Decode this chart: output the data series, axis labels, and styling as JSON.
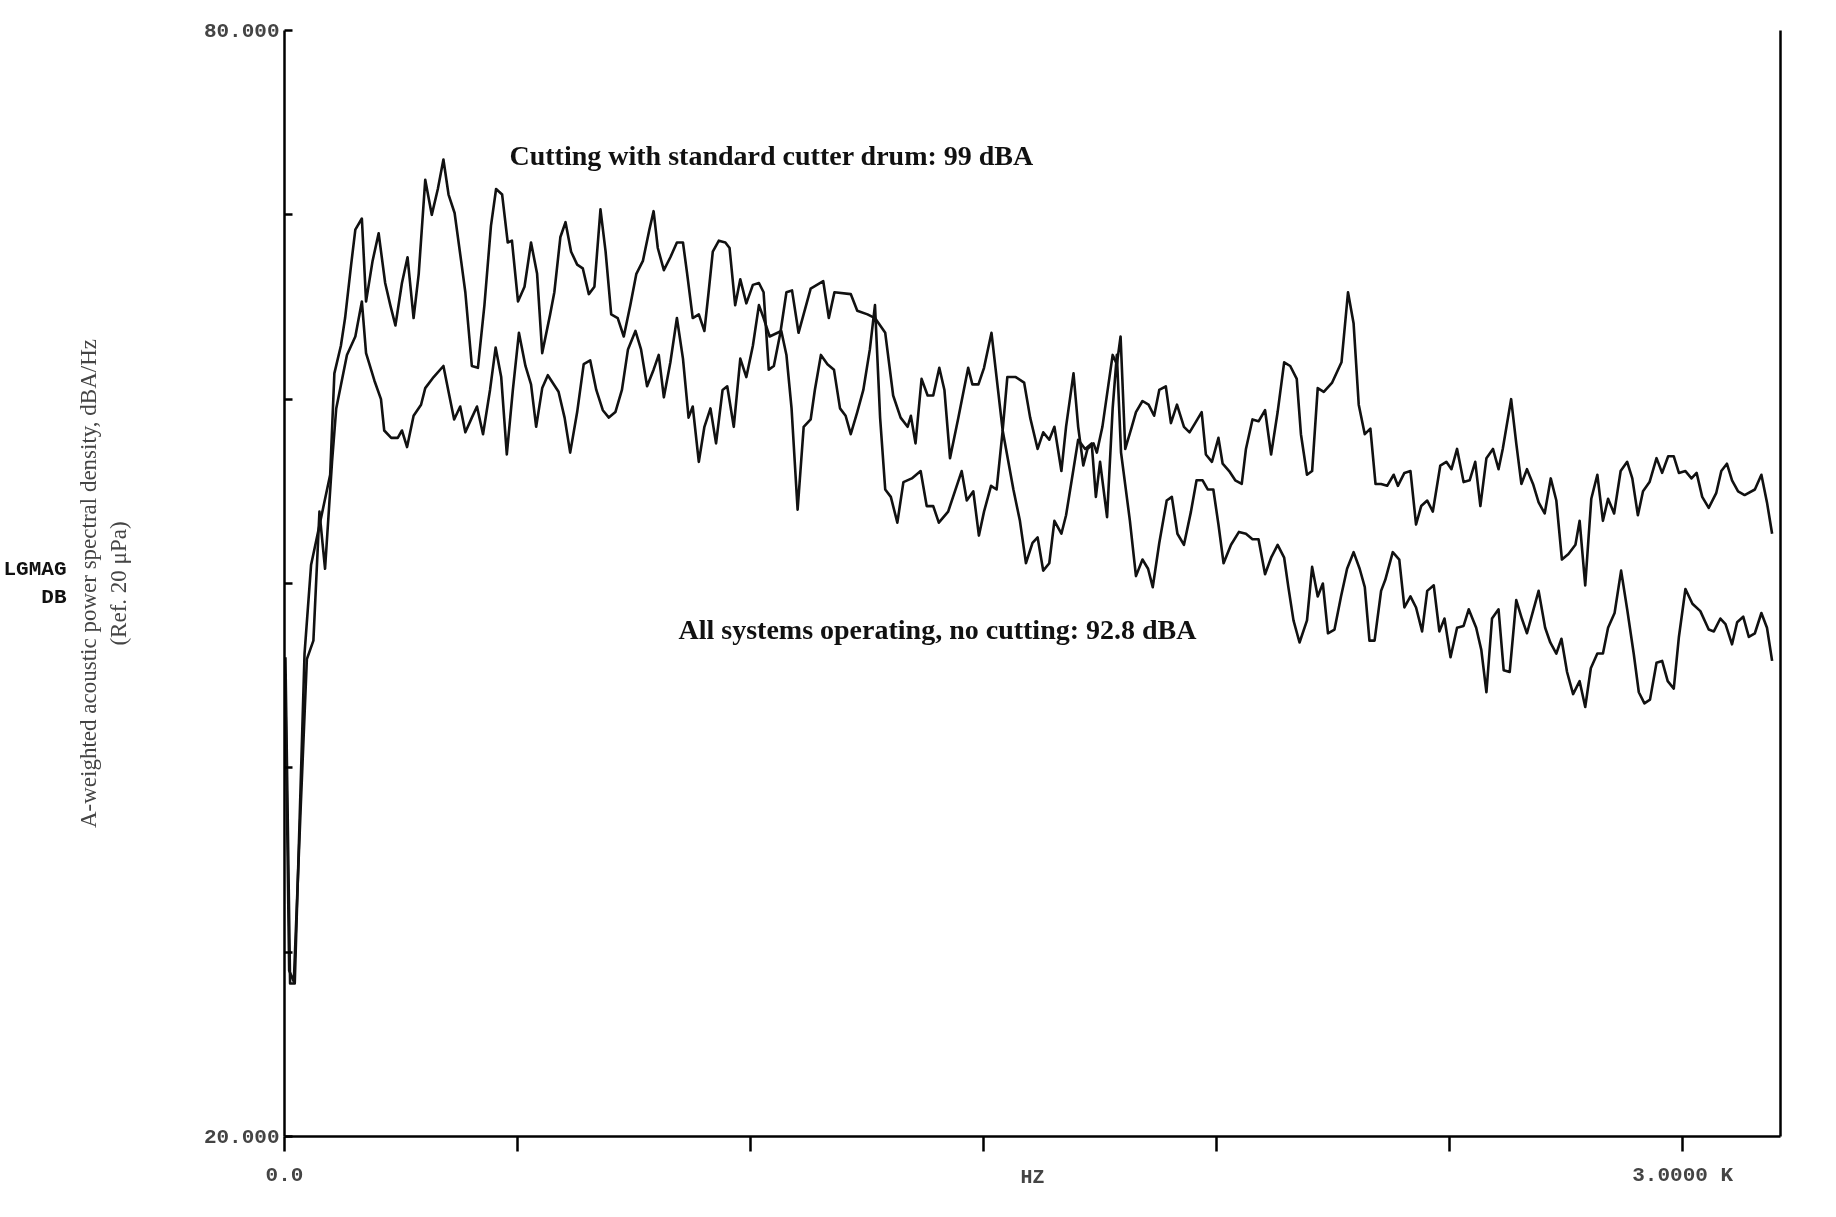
{
  "chart_data": {
    "type": "line",
    "xlabel": "HZ",
    "ylabel": "A-weighted acoustic power spectral density, dBA/Hz\n(Ref. 20 μPa)",
    "xlim": [
      0,
      3210
    ],
    "ylim": [
      20,
      80
    ],
    "xticks": [
      {
        "value": 0,
        "label": "0.0"
      },
      {
        "value": 500,
        "label": null
      },
      {
        "value": 1000,
        "label": null
      },
      {
        "value": 1500,
        "label": null
      },
      {
        "value": 2000,
        "label": null
      },
      {
        "value": 2500,
        "label": null
      },
      {
        "value": 3000,
        "label": "3.0000 K"
      }
    ],
    "yticks": [
      {
        "value": 20,
        "label": "20.000"
      },
      {
        "value": 30,
        "label": null
      },
      {
        "value": 40,
        "label": null
      },
      {
        "value": 50,
        "label": null
      },
      {
        "value": 60,
        "label": null
      },
      {
        "value": 70,
        "label": null
      },
      {
        "value": 80,
        "label": "80.000"
      }
    ],
    "grid": false,
    "marker": "none",
    "line_style": "solid",
    "annotations": [
      "Cutting with standard cutter drum: 99 dBA",
      "All systems operating, no cutting: 92.8 dBA",
      "LGMAG\nDB"
    ],
    "series": [
      {
        "color": "#111111",
        "x": [
          2,
          12,
          22,
          43,
          57,
          98,
          107,
          121,
          130,
          143,
          152,
          166,
          175,
          189,
          202,
          216,
          227,
          238,
          252,
          264,
          277,
          288,
          302,
          316,
          329,
          341,
          352,
          365,
          379,
          388,
          402,
          415,
          429,
          443,
          454,
          467,
          479,
          488,
          501,
          515,
          529,
          542,
          553,
          570,
          579,
          592,
          603,
          615,
          628,
          640,
          653,
          665,
          678,
          689,
          701,
          715,
          728,
          742,
          755,
          769,
          783,
          792,
          801,
          814,
          828,
          842,
          855,
          864,
          876,
          889,
          901,
          910,
          919,
          932,
          946,
          955,
          967,
          978,
          991,
          1005,
          1018,
          1028,
          1039,
          1050,
          1064,
          1077,
          1089,
          1103,
          1129,
          1156,
          1168,
          1180,
          1215,
          1229,
          1251,
          1267,
          1289,
          1306,
          1322,
          1337,
          1344,
          1354,
          1367,
          1380,
          1392,
          1405,
          1416,
          1428,
          1446,
          1467,
          1476,
          1489,
          1501,
          1517,
          1531,
          1541,
          1551,
          1569,
          1587,
          1600,
          1616,
          1628,
          1641,
          1652,
          1667,
          1677,
          1693,
          1703,
          1714,
          1723,
          1736,
          1743,
          1755,
          1777,
          1786,
          1794,
          1804,
          1818,
          1827,
          1841,
          1854,
          1866,
          1877,
          1891,
          1902,
          1915,
          1930,
          1942,
          1954,
          1968,
          1977,
          1990,
          2004,
          2013,
          2027,
          2040,
          2054,
          2063,
          2077,
          2090,
          2104,
          2117,
          2131,
          2145,
          2158,
          2172,
          2181,
          2194,
          2205,
          2217,
          2230,
          2248,
          2268,
          2282,
          2294,
          2305,
          2318,
          2330,
          2341,
          2353,
          2366,
          2380,
          2389,
          2403,
          2416,
          2428,
          2439,
          2452,
          2464,
          2480,
          2493,
          2504,
          2516,
          2530,
          2543,
          2555,
          2566,
          2579,
          2593,
          2605,
          2614,
          2632,
          2643,
          2654,
          2666,
          2679,
          2691,
          2704,
          2717,
          2729,
          2741,
          2755,
          2770,
          2779,
          2791,
          2804,
          2817,
          2829,
          2840,
          2853,
          2867,
          2881,
          2892,
          2904,
          2915,
          2929,
          2944,
          2956,
          2969,
          2981,
          2992,
          3006,
          3019,
          3030,
          3042,
          3056,
          3072,
          3083,
          3095,
          3106,
          3119,
          3133,
          3155,
          3169,
          3181,
          3192
        ],
        "values": [
          46.0,
          28.3,
          28.3,
          46.2,
          51.0,
          55.9,
          61.4,
          62.9,
          64.4,
          67.3,
          69.2,
          69.8,
          65.3,
          67.5,
          69.0,
          66.3,
          65.1,
          64.0,
          66.3,
          67.7,
          64.4,
          66.8,
          71.9,
          70.0,
          71.4,
          73.0,
          71.1,
          70.1,
          67.5,
          65.8,
          61.8,
          61.7,
          65.1,
          69.4,
          71.4,
          71.1,
          68.5,
          68.6,
          65.3,
          66.1,
          68.5,
          66.8,
          62.5,
          64.6,
          65.8,
          68.8,
          69.6,
          68.0,
          67.3,
          67.1,
          65.7,
          66.1,
          70.3,
          68.0,
          64.6,
          64.4,
          63.4,
          65.1,
          66.8,
          67.5,
          69.2,
          70.2,
          68.2,
          67.0,
          67.7,
          68.5,
          68.5,
          66.8,
          64.4,
          64.6,
          63.7,
          65.8,
          68.0,
          68.6,
          68.5,
          68.2,
          65.1,
          66.5,
          65.2,
          66.2,
          66.3,
          65.8,
          61.6,
          61.8,
          63.6,
          65.8,
          65.9,
          63.6,
          66.0,
          66.4,
          64.4,
          65.8,
          65.7,
          64.8,
          64.6,
          64.4,
          63.6,
          60.2,
          59.0,
          58.5,
          59.1,
          57.6,
          61.1,
          60.2,
          60.2,
          61.7,
          60.5,
          56.8,
          59.0,
          61.7,
          60.8,
          60.8,
          61.7,
          63.6,
          60.5,
          58.3,
          61.2,
          61.2,
          60.9,
          59.0,
          57.3,
          58.2,
          57.8,
          58.5,
          56.1,
          58.5,
          61.4,
          58.5,
          56.4,
          57.3,
          57.6,
          57.1,
          58.5,
          62.4,
          61.9,
          63.4,
          57.3,
          58.5,
          59.3,
          59.9,
          59.7,
          59.1,
          60.5,
          60.7,
          58.7,
          59.7,
          58.5,
          58.2,
          58.7,
          59.3,
          57.0,
          56.6,
          57.9,
          56.5,
          56.1,
          55.6,
          55.4,
          57.3,
          58.9,
          58.8,
          59.4,
          57.0,
          59.3,
          62.0,
          61.8,
          61.1,
          58.1,
          55.9,
          56.1,
          60.6,
          60.4,
          60.9,
          62.0,
          65.8,
          64.1,
          59.7,
          58.1,
          58.4,
          55.4,
          55.4,
          55.3,
          55.9,
          55.3,
          56.0,
          56.1,
          53.2,
          54.2,
          54.5,
          53.9,
          56.4,
          56.6,
          56.2,
          57.3,
          55.5,
          55.6,
          56.6,
          54.2,
          56.8,
          57.3,
          56.2,
          57.3,
          60.0,
          57.6,
          55.4,
          56.2,
          55.4,
          54.4,
          53.8,
          55.7,
          54.5,
          51.3,
          51.6,
          52.1,
          53.4,
          49.9,
          54.6,
          55.9,
          53.4,
          54.6,
          53.8,
          56.1,
          56.6,
          55.7,
          53.7,
          55.0,
          55.5,
          56.8,
          56.0,
          56.9,
          56.9,
          56.0,
          56.1,
          55.7,
          56.0,
          54.7,
          54.1,
          54.9,
          56.1,
          56.5,
          55.6,
          55.0,
          54.8,
          55.1,
          55.9,
          54.4,
          52.7
        ]
      },
      {
        "color": "#111111",
        "x": [
          2,
          10,
          20,
          35,
          48,
          62,
          75,
          87,
          102,
          111,
          134,
          152,
          166,
          175,
          193,
          207,
          214,
          229,
          243,
          252,
          263,
          277,
          293,
          302,
          320,
          341,
          352,
          364,
          377,
          388,
          402,
          413,
          426,
          441,
          453,
          465,
          477,
          490,
          503,
          517,
          529,
          540,
          553,
          565,
          588,
          601,
          613,
          628,
          642,
          656,
          669,
          683,
          696,
          710,
          724,
          737,
          753,
          765,
          778,
          792,
          803,
          814,
          828,
          842,
          855,
          867,
          876,
          889,
          901,
          914,
          926,
          940,
          950,
          964,
          978,
          991,
          1005,
          1018,
          1028,
          1041,
          1066,
          1077,
          1088,
          1101,
          1114,
          1129,
          1138,
          1151,
          1165,
          1179,
          1192,
          1204,
          1215,
          1229,
          1242,
          1256,
          1267,
          1278,
          1289,
          1301,
          1315,
          1328,
          1346,
          1365,
          1378,
          1392,
          1404,
          1424,
          1453,
          1464,
          1478,
          1490,
          1501,
          1516,
          1528,
          1541,
          1564,
          1578,
          1591,
          1605,
          1616,
          1628,
          1641,
          1652,
          1667,
          1677,
          1691,
          1703,
          1718,
          1732,
          1741,
          1750,
          1765,
          1777,
          1786,
          1795,
          1814,
          1827,
          1841,
          1853,
          1863,
          1877,
          1893,
          1904,
          1916,
          1930,
          1945,
          1957,
          1970,
          1981,
          1993,
          2004,
          2015,
          2031,
          2048,
          2063,
          2077,
          2090,
          2104,
          2117,
          2131,
          2145,
          2154,
          2165,
          2178,
          2194,
          2205,
          2217,
          2228,
          2239,
          2253,
          2267,
          2280,
          2294,
          2307,
          2318,
          2328,
          2339,
          2353,
          2362,
          2378,
          2392,
          2403,
          2416,
          2428,
          2441,
          2452,
          2466,
          2478,
          2489,
          2502,
          2516,
          2530,
          2541,
          2557,
          2568,
          2579,
          2591,
          2605,
          2616,
          2629,
          2643,
          2655,
          2666,
          2679,
          2691,
          2705,
          2716,
          2729,
          2740,
          2752,
          2765,
          2779,
          2791,
          2803,
          2817,
          2829,
          2840,
          2854,
          2868,
          2881,
          2895,
          2906,
          2918,
          2930,
          2944,
          2956,
          2968,
          2981,
          2992,
          3006,
          3021,
          3038,
          3056,
          3067,
          3081,
          3092,
          3106,
          3117,
          3130,
          3142,
          3155,
          3169,
          3181,
          3192
        ],
        "values": [
          44.0,
          29.0,
          28.4,
          38.0,
          45.9,
          46.9,
          53.9,
          50.8,
          56.6,
          59.5,
          62.4,
          63.4,
          65.3,
          62.5,
          61.0,
          60.0,
          58.3,
          57.9,
          57.9,
          58.3,
          57.4,
          59.1,
          59.7,
          60.6,
          61.2,
          61.8,
          60.4,
          58.9,
          59.6,
          58.2,
          59.0,
          59.6,
          58.1,
          60.5,
          62.8,
          61.2,
          57.0,
          60.5,
          63.6,
          61.8,
          60.8,
          58.5,
          60.6,
          61.3,
          60.4,
          59.0,
          57.1,
          59.3,
          61.9,
          62.1,
          60.5,
          59.4,
          59.0,
          59.3,
          60.5,
          62.7,
          63.7,
          62.7,
          60.7,
          61.6,
          62.4,
          60.1,
          62.0,
          64.4,
          62.2,
          59.0,
          59.6,
          56.6,
          58.5,
          59.5,
          57.6,
          60.5,
          60.7,
          58.5,
          62.2,
          61.2,
          62.9,
          65.1,
          64.4,
          63.4,
          63.7,
          62.4,
          59.5,
          54.0,
          58.5,
          58.9,
          60.5,
          62.4,
          61.9,
          61.6,
          59.5,
          59.1,
          58.1,
          59.3,
          60.5,
          62.7,
          65.1,
          59.0,
          55.1,
          54.7,
          53.3,
          55.5,
          55.7,
          56.1,
          54.2,
          54.2,
          53.3,
          53.9,
          56.1,
          54.5,
          55.0,
          52.6,
          53.9,
          55.3,
          55.1,
          58.3,
          55.1,
          53.4,
          51.1,
          52.2,
          52.5,
          50.7,
          51.1,
          53.4,
          52.7,
          53.7,
          55.9,
          57.8,
          57.3,
          57.6,
          54.7,
          56.6,
          53.6,
          59.5,
          62.4,
          57.1,
          53.4,
          50.4,
          51.3,
          50.8,
          49.8,
          52.2,
          54.5,
          54.7,
          52.7,
          52.1,
          53.9,
          55.6,
          55.6,
          55.1,
          55.1,
          53.2,
          51.1,
          52.1,
          52.8,
          52.7,
          52.4,
          52.4,
          50.5,
          51.4,
          52.1,
          51.4,
          49.8,
          48.0,
          46.8,
          48.0,
          50.9,
          49.3,
          50.0,
          47.3,
          47.5,
          49.3,
          50.8,
          51.7,
          50.8,
          49.8,
          46.9,
          46.9,
          49.6,
          50.2,
          51.7,
          51.3,
          48.7,
          49.3,
          48.7,
          47.4,
          49.6,
          49.9,
          47.4,
          48.1,
          46.0,
          47.6,
          47.7,
          48.6,
          47.6,
          46.4,
          44.1,
          48.1,
          48.6,
          45.3,
          45.2,
          49.1,
          48.1,
          47.3,
          48.5,
          49.6,
          47.6,
          46.8,
          46.2,
          47.0,
          45.2,
          44.0,
          44.7,
          43.3,
          45.4,
          46.2,
          46.2,
          47.6,
          48.4,
          50.7,
          48.6,
          46.2,
          44.1,
          43.5,
          43.7,
          45.7,
          45.8,
          44.7,
          44.3,
          47.1,
          49.7,
          48.9,
          48.5,
          47.5,
          47.4,
          48.1,
          47.8,
          46.7,
          47.9,
          48.2,
          47.1,
          47.3,
          48.4,
          47.6,
          45.8
        ]
      }
    ]
  }
}
